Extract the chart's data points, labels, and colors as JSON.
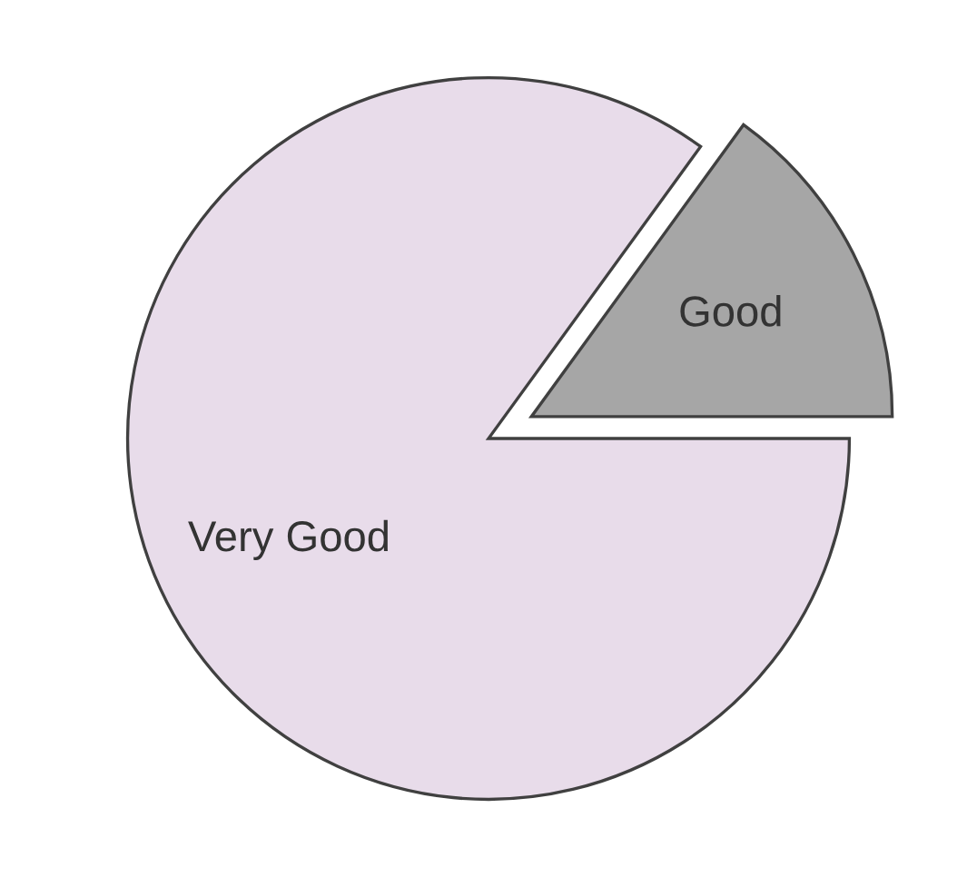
{
  "chart_data": {
    "type": "pie",
    "categories": [
      "Good",
      "Very Good"
    ],
    "values": [
      15,
      85
    ],
    "colors": [
      "#a6a6a6",
      "#e8dcea"
    ]
  }
}
